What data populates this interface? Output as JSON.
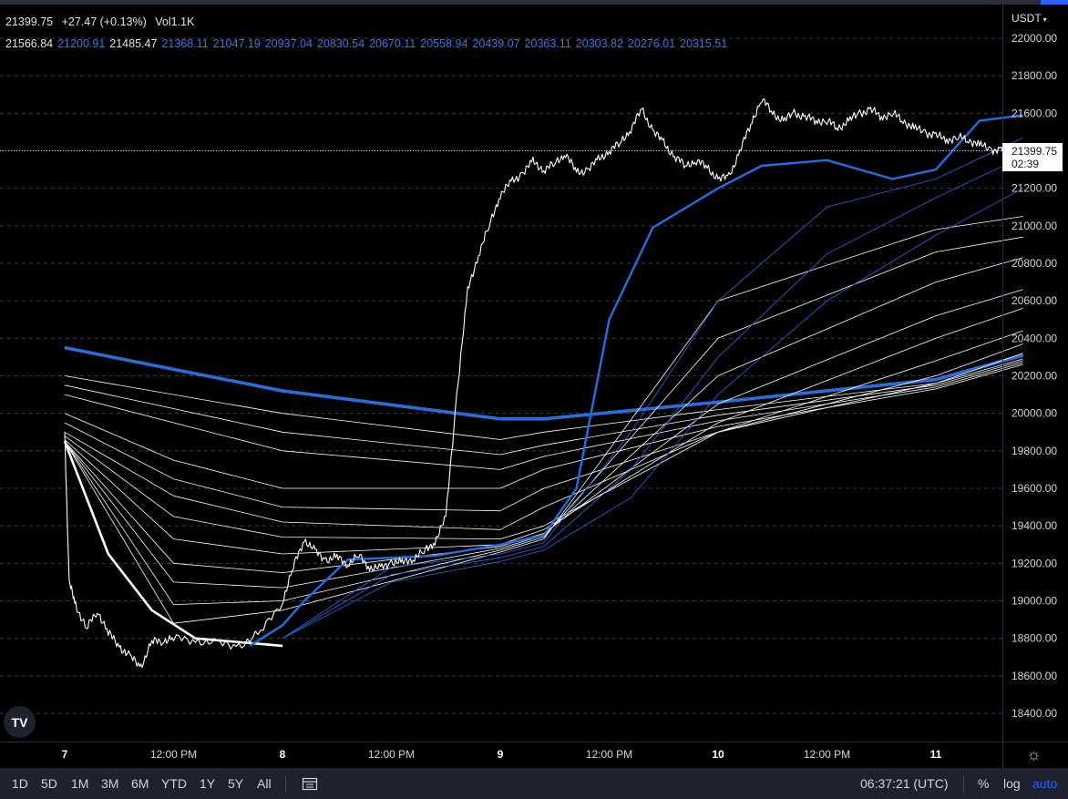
{
  "header": {
    "last_price": "21399.75",
    "change": "+27.47 (+0.13%)",
    "volume": "Vol1.1K",
    "ribbon_values": [
      {
        "text": "21566.84",
        "tone": "white"
      },
      {
        "text": "21200.91",
        "tone": "blue"
      },
      {
        "text": "21485.47",
        "tone": "white"
      },
      {
        "text": "21368.11",
        "tone": "blue"
      },
      {
        "text": "21047.19",
        "tone": "blue"
      },
      {
        "text": "20937.04",
        "tone": "blue"
      },
      {
        "text": "20830.54",
        "tone": "blue"
      },
      {
        "text": "20670.11",
        "tone": "blue"
      },
      {
        "text": "20558.94",
        "tone": "blue"
      },
      {
        "text": "20439.07",
        "tone": "blue"
      },
      {
        "text": "20363.11",
        "tone": "blue"
      },
      {
        "text": "20303.82",
        "tone": "blue"
      },
      {
        "text": "20276.01",
        "tone": "blue"
      },
      {
        "text": "20315.51",
        "tone": "blue"
      }
    ]
  },
  "price_scale": {
    "currency": "USDT",
    "last_label": "21399.75",
    "countdown": "02:39"
  },
  "toolbar": {
    "ranges": [
      "1D",
      "5D",
      "1M",
      "3M",
      "6M",
      "YTD",
      "1Y",
      "5Y",
      "All"
    ],
    "clock": "06:37:21 (UTC)",
    "percent": "%",
    "log": "log",
    "auto": "auto"
  },
  "logo_text": "TV",
  "colors": {
    "background": "#000000",
    "price": "#ffffff",
    "ribbon_blue": "#1e6fe6",
    "ribbon_white": "#ffffff",
    "accent": "#2962ff"
  },
  "chart_data": {
    "type": "line",
    "x_labels": [
      "7",
      "12:00 PM",
      "8",
      "12:00 PM",
      "9",
      "12:00 PM",
      "10",
      "12:00 PM",
      "11"
    ],
    "y_ticks": [
      22000,
      21800,
      21600,
      21400,
      21200,
      21000,
      20800,
      20600,
      20400,
      20200,
      20000,
      19800,
      19600,
      19400,
      19200,
      19000,
      18800,
      18600,
      18400
    ],
    "ylim": [
      18250,
      22100
    ],
    "grid": true,
    "price_series": {
      "name": "",
      "x": [
        0,
        0.02,
        0.05,
        0.1,
        0.15,
        0.2,
        0.25,
        0.3,
        0.35,
        0.4,
        0.45,
        0.5,
        0.6,
        0.7,
        0.8,
        0.9,
        1.0,
        1.05,
        1.1,
        1.15,
        1.2,
        1.25,
        1.3,
        1.35,
        1.4,
        1.45,
        1.5,
        1.55,
        1.6,
        1.65,
        1.7,
        1.75,
        1.8,
        1.85,
        1.9,
        1.95,
        2.0,
        2.05,
        2.1,
        2.15,
        2.2,
        2.25,
        2.3,
        2.35,
        2.4,
        2.45,
        2.5,
        2.55,
        2.6,
        2.65,
        2.7,
        2.75,
        2.8,
        2.85,
        2.9,
        2.95,
        3.0,
        3.05,
        3.1,
        3.15,
        3.2,
        3.25,
        3.3,
        3.35,
        3.4,
        3.45,
        3.5,
        3.55,
        3.6,
        3.65,
        3.7,
        3.75,
        3.8,
        3.85,
        3.9,
        3.95,
        4.0,
        4.05,
        4.1,
        4.15,
        4.2,
        4.25,
        4.3,
        4.35,
        4.4
      ],
      "y": [
        19900,
        19100,
        18980,
        18850,
        18950,
        18830,
        18760,
        18700,
        18650,
        18780,
        18790,
        18800,
        18790,
        18770,
        18760,
        18830,
        19000,
        19180,
        19330,
        19260,
        19220,
        19230,
        19200,
        19240,
        19180,
        19170,
        19210,
        19200,
        19230,
        19260,
        19320,
        19440,
        20100,
        20650,
        20850,
        21000,
        21170,
        21230,
        21280,
        21340,
        21300,
        21330,
        21390,
        21280,
        21300,
        21350,
        21400,
        21440,
        21520,
        21620,
        21510,
        21440,
        21370,
        21320,
        21350,
        21310,
        21250,
        21260,
        21400,
        21540,
        21680,
        21600,
        21560,
        21600,
        21580,
        21560,
        21560,
        21520,
        21560,
        21600,
        21620,
        21580,
        21600,
        21560,
        21520,
        21500,
        21480,
        21460,
        21470,
        21460,
        21430,
        21410,
        21400,
        21400,
        21399.75
      ]
    },
    "ribbons": [
      {
        "color": "white",
        "width": 3.2,
        "x": [
          0,
          1,
          2,
          2.2,
          3,
          4,
          4.4
        ],
        "y": [
          20350,
          20120,
          19970,
          19970,
          20060,
          20180,
          20310
        ]
      },
      {
        "color": "blue",
        "width": 3.2,
        "x": [
          0,
          1,
          2,
          2.2,
          3,
          4,
          4.4
        ],
        "y": [
          20350,
          20120,
          19970,
          19970,
          20060,
          20180,
          20310
        ]
      },
      {
        "color": "white",
        "width": 0.8,
        "x": [
          0,
          1,
          2,
          2.2,
          3,
          4,
          4.4
        ],
        "y": [
          20200,
          20000,
          19860,
          19900,
          20020,
          20160,
          20290
        ]
      },
      {
        "color": "white",
        "width": 0.8,
        "x": [
          0,
          1,
          2,
          2.2,
          3,
          4,
          4.4
        ],
        "y": [
          20150,
          19900,
          19780,
          19830,
          19990,
          20150,
          20280
        ]
      },
      {
        "color": "white",
        "width": 0.8,
        "x": [
          0,
          1,
          2,
          2.2,
          3,
          4,
          4.4
        ],
        "y": [
          20100,
          19800,
          19700,
          19770,
          19960,
          20140,
          20270
        ]
      },
      {
        "color": "white",
        "width": 0.8,
        "x": [
          0,
          0.5,
          1,
          2,
          2.2,
          3,
          4,
          4.4
        ],
        "y": [
          20000,
          19750,
          19600,
          19600,
          19700,
          19930,
          20130,
          20260
        ]
      },
      {
        "color": "white",
        "width": 0.8,
        "x": [
          0,
          0.5,
          1,
          2,
          2.2,
          3,
          4,
          4.4
        ],
        "y": [
          19950,
          19650,
          19500,
          19480,
          19600,
          19900,
          20160,
          20320
        ]
      },
      {
        "color": "white",
        "width": 0.8,
        "x": [
          0,
          0.5,
          1,
          2,
          2.2,
          3,
          4,
          4.4
        ],
        "y": [
          19900,
          19560,
          19420,
          19380,
          19500,
          19900,
          20200,
          20370
        ]
      },
      {
        "color": "white",
        "width": 0.8,
        "x": [
          0,
          0.5,
          1,
          2,
          2.2,
          3,
          4,
          4.4
        ],
        "y": [
          19880,
          19450,
          19340,
          19330,
          19400,
          19900,
          20280,
          20440
        ]
      },
      {
        "color": "white",
        "width": 0.8,
        "x": [
          0,
          0.5,
          1,
          2,
          2.2,
          3,
          4,
          4.4
        ],
        "y": [
          19860,
          19330,
          19250,
          19300,
          19380,
          19950,
          20400,
          20560
        ]
      },
      {
        "color": "white",
        "width": 0.8,
        "x": [
          0,
          0.5,
          1,
          2,
          2.2,
          3,
          4,
          4.4
        ],
        "y": [
          19850,
          19200,
          19150,
          19290,
          19360,
          20050,
          20520,
          20660
        ]
      },
      {
        "color": "white",
        "width": 0.8,
        "x": [
          0,
          0.5,
          1,
          2,
          2.2,
          3,
          4,
          4.4
        ],
        "y": [
          19850,
          19100,
          19070,
          19280,
          19350,
          20200,
          20700,
          20830
        ]
      },
      {
        "color": "white",
        "width": 0.8,
        "x": [
          0,
          0.5,
          1,
          2,
          2.2,
          3,
          4,
          4.4
        ],
        "y": [
          19850,
          18980,
          19000,
          19270,
          19340,
          20400,
          20860,
          20940
        ]
      },
      {
        "color": "white",
        "width": 0.8,
        "x": [
          0,
          0.5,
          1,
          2,
          2.2,
          3,
          4,
          4.4
        ],
        "y": [
          19850,
          18880,
          18950,
          19260,
          19330,
          20600,
          20980,
          21050
        ]
      },
      {
        "color": "white",
        "width": 2.6,
        "x": [
          0,
          0.2,
          0.4,
          0.6,
          0.8,
          0.9,
          1.0
        ],
        "y": [
          19850,
          19250,
          18950,
          18800,
          18780,
          18770,
          18760
        ]
      },
      {
        "color": "blue",
        "width": 2.4,
        "x": [
          0.85,
          1.0,
          1.1,
          1.3,
          1.5,
          1.7,
          2.0,
          2.2,
          2.35,
          2.5,
          2.7,
          3.0,
          3.2,
          3.5,
          3.8,
          4.0,
          4.2,
          4.4
        ],
        "y": [
          18760,
          18870,
          19000,
          19220,
          19230,
          19240,
          19300,
          19350,
          19600,
          20500,
          20990,
          21200,
          21320,
          21350,
          21250,
          21300,
          21560,
          21590
        ]
      },
      {
        "color": "blue",
        "width": 0.8,
        "x": [
          1.0,
          1.5,
          2.0,
          2.2,
          2.6,
          3.0,
          3.5,
          4.0,
          4.4
        ],
        "y": [
          18800,
          19180,
          19250,
          19310,
          19900,
          20600,
          21100,
          21250,
          21470
        ]
      },
      {
        "color": "blue",
        "width": 0.8,
        "x": [
          1.0,
          1.5,
          2.0,
          2.2,
          2.6,
          3.0,
          3.5,
          4.0,
          4.4
        ],
        "y": [
          18800,
          19140,
          19230,
          19290,
          19700,
          20300,
          20850,
          21150,
          21370
        ]
      },
      {
        "color": "blue",
        "width": 0.8,
        "x": [
          1.0,
          1.5,
          2.0,
          2.2,
          2.6,
          3.0,
          3.5,
          4.0,
          4.4
        ],
        "y": [
          18800,
          19100,
          19210,
          19270,
          19550,
          20100,
          20600,
          20950,
          21200
        ]
      }
    ]
  }
}
